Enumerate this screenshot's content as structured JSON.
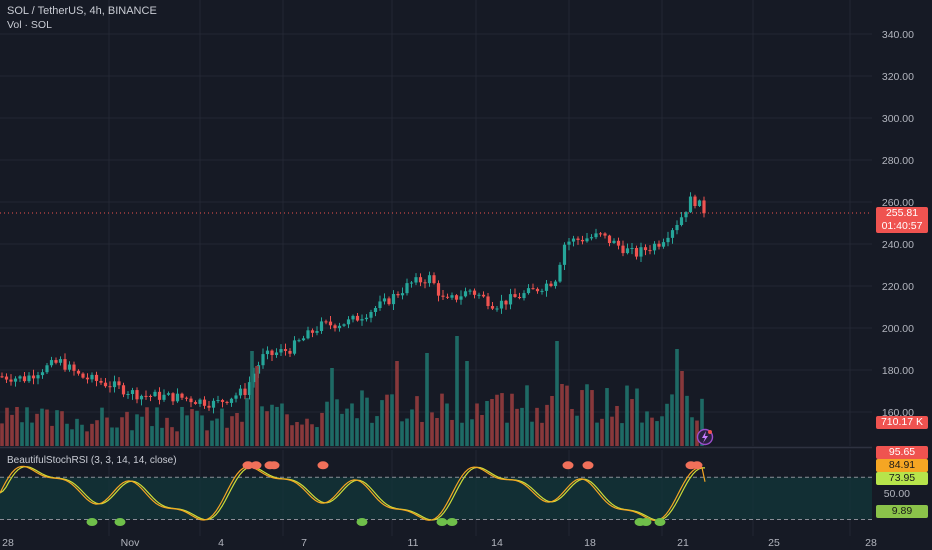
{
  "header": {
    "symbol_line": "SOL / TetherUS, 4h, BINANCE",
    "volume_label": "Vol · SOL"
  },
  "price_panel": {
    "y_ticks": [
      "340.00",
      "320.00",
      "300.00",
      "280.00",
      "260.00",
      "240.00",
      "220.00",
      "200.00",
      "180.00",
      "160.00"
    ],
    "last_price": "255.81",
    "countdown": "01:40:57",
    "volume_value": "710.17 K"
  },
  "oscillator": {
    "label": "BeautifulStochRSI (3, 3, 14, 14, close)",
    "y_ticks": [
      "50.00"
    ],
    "k_value": "95.65",
    "d_value": "84.91",
    "upper_band_value": "73.95",
    "lower_band_value": "9.89"
  },
  "x_axis": {
    "ticks": [
      "28",
      "Nov",
      "4",
      "7",
      "11",
      "14",
      "18",
      "21",
      "25",
      "28"
    ]
  },
  "colors": {
    "background": "#161a25",
    "up": "#26a69a",
    "down": "#ef5350",
    "k_line": "#f5a623",
    "d_line": "#cddc39",
    "price_tag": "#ef5350",
    "band_upper": "#b7e44b",
    "band_lower": "#8bc34a"
  },
  "chart_data": {
    "type": "candlestick",
    "timeframe": "4h",
    "ylim": [
      150,
      345
    ],
    "close_points": [
      [
        "Oct 27",
        177
      ],
      [
        "Oct 29",
        178
      ],
      [
        "Oct 30",
        183
      ],
      [
        "Oct 31",
        176
      ],
      [
        "Nov 2",
        166
      ],
      [
        "Nov 3",
        166
      ],
      [
        "Nov 5",
        165
      ],
      [
        "Nov 6",
        186
      ],
      [
        "Nov 7",
        189
      ],
      [
        "Nov 8",
        201
      ],
      [
        "Nov 9",
        203
      ],
      [
        "Nov 10",
        212
      ],
      [
        "Nov 11",
        220
      ],
      [
        "Nov 12",
        222
      ],
      [
        "Nov 13",
        212
      ],
      [
        "Nov 14",
        218
      ],
      [
        "Nov 15",
        211
      ],
      [
        "Nov 16",
        217
      ],
      [
        "Nov 17",
        223
      ],
      [
        "Nov 18",
        241
      ],
      [
        "Nov 19",
        244
      ],
      [
        "Nov 20",
        235
      ],
      [
        "Nov 21",
        241
      ],
      [
        "Nov 22",
        262
      ],
      [
        "Nov 22",
        255.81
      ]
    ],
    "volume_series_last": "710.17 K",
    "oscillator_series": [
      {
        "name": "K",
        "last": 95.65
      },
      {
        "name": "D",
        "last": 84.91
      }
    ],
    "oscillator_bands": [
      73.95,
      9.89
    ]
  }
}
